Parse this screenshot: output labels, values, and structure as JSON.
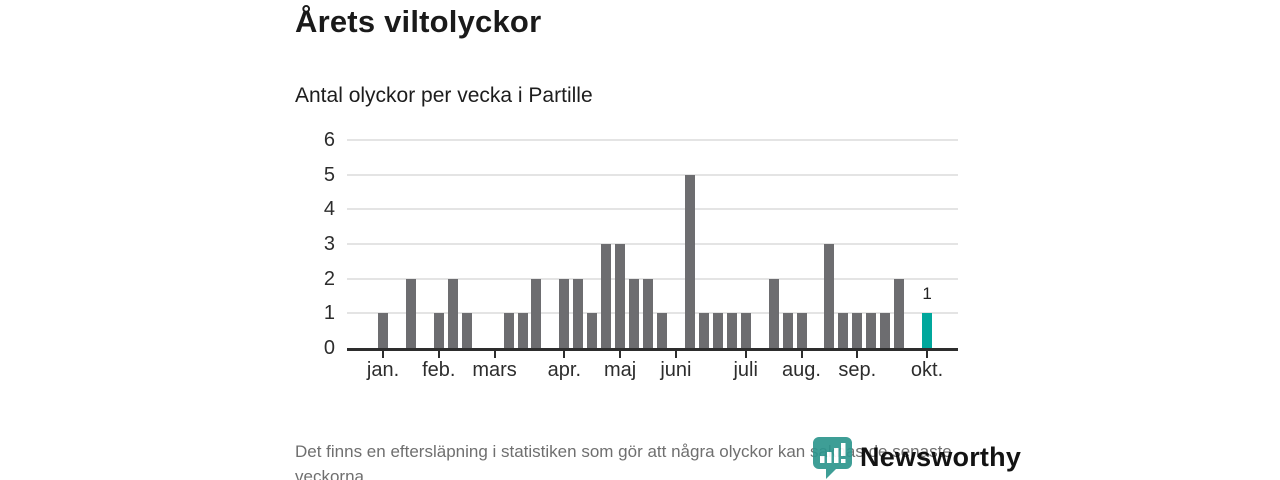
{
  "header": {
    "title": "Årets viltolyckor",
    "subtitle": "Antal olyckor per vecka i Partille"
  },
  "chart_data": {
    "type": "bar",
    "title": "Årets viltolyckor",
    "subtitle": "Antal olyckor per vecka i Partille",
    "x_unit": "vecka",
    "weekly_values": [
      1,
      0,
      2,
      0,
      1,
      2,
      1,
      0,
      0,
      1,
      1,
      2,
      0,
      2,
      2,
      1,
      3,
      3,
      2,
      2,
      1,
      0,
      5,
      1,
      1,
      1,
      1,
      0,
      2,
      1,
      1,
      0,
      3,
      1,
      1,
      1,
      1,
      2,
      0,
      1
    ],
    "month_ticks": [
      {
        "label": "jan.",
        "week": 1
      },
      {
        "label": "feb.",
        "week": 5
      },
      {
        "label": "mars",
        "week": 9
      },
      {
        "label": "apr.",
        "week": 14
      },
      {
        "label": "maj",
        "week": 18
      },
      {
        "label": "juni",
        "week": 22
      },
      {
        "label": "juli",
        "week": 27
      },
      {
        "label": "aug.",
        "week": 31
      },
      {
        "label": "sep.",
        "week": 35
      },
      {
        "label": "okt.",
        "week": 40
      }
    ],
    "yticks": [
      0,
      1,
      2,
      3,
      4,
      5,
      6
    ],
    "ylim": [
      0,
      6
    ],
    "grid": true,
    "legend": "none",
    "bar_color": "#6d6d70",
    "highlight_week": 40,
    "highlight_color": "#00a79c",
    "highlight_label": "1"
  },
  "footer": {
    "note": "Det finns en eftersläpning i statistiken som gör att några olyckor kan saknas de senaste veckorna."
  },
  "logo": {
    "text": "Newsworthy",
    "icon": "newsworthy-pin-barchart-icon",
    "color": "#2e968e"
  }
}
